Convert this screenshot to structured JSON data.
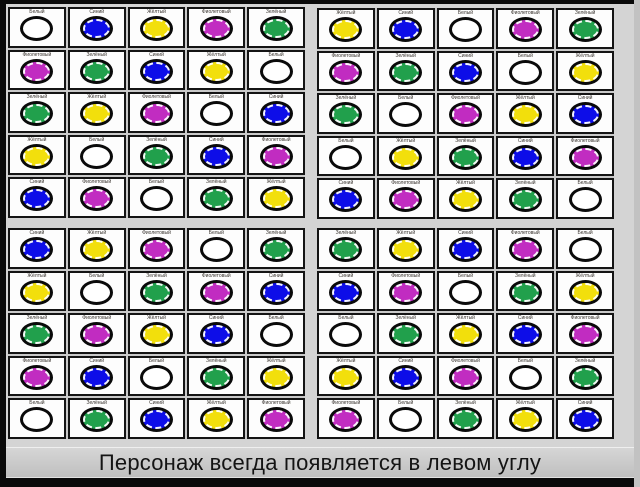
{
  "caption": "Персонаж всегда появляется в левом углу",
  "colors": {
    "white": {
      "label": "Белый",
      "hex": "#ffffff"
    },
    "blue": {
      "label": "Синий",
      "hex": "#0d0de8"
    },
    "yellow": {
      "label": "Жёлтый",
      "hex": "#f2df0c"
    },
    "violet": {
      "label": "Фиолетовый",
      "hex": "#c12cc1"
    },
    "green": {
      "label": "Зелёный",
      "hex": "#21a04c"
    }
  },
  "grids": [
    {
      "name": "top-left",
      "rows": [
        [
          "white",
          "blue",
          "yellow",
          "violet",
          "green"
        ],
        [
          "violet",
          "green",
          "blue",
          "yellow",
          "white"
        ],
        [
          "green",
          "yellow",
          "violet",
          "white",
          "blue"
        ],
        [
          "yellow",
          "white",
          "green",
          "blue",
          "violet"
        ],
        [
          "blue",
          "violet",
          "white",
          "green",
          "yellow"
        ]
      ]
    },
    {
      "name": "top-right",
      "rows": [
        [
          "yellow",
          "blue",
          "white",
          "violet",
          "green"
        ],
        [
          "violet",
          "green",
          "blue",
          "white",
          "yellow"
        ],
        [
          "green",
          "white",
          "violet",
          "yellow",
          "blue"
        ],
        [
          "white",
          "yellow",
          "green",
          "blue",
          "violet"
        ],
        [
          "blue",
          "violet",
          "yellow",
          "green",
          "white"
        ]
      ]
    },
    {
      "name": "bottom-left",
      "rows": [
        [
          "blue",
          "yellow",
          "violet",
          "white",
          "green"
        ],
        [
          "yellow",
          "white",
          "green",
          "violet",
          "blue"
        ],
        [
          "green",
          "violet",
          "yellow",
          "blue",
          "white"
        ],
        [
          "violet",
          "blue",
          "white",
          "green",
          "yellow"
        ],
        [
          "white",
          "green",
          "blue",
          "yellow",
          "violet"
        ]
      ]
    },
    {
      "name": "bottom-right",
      "rows": [
        [
          "green",
          "yellow",
          "blue",
          "violet",
          "white"
        ],
        [
          "blue",
          "violet",
          "white",
          "green",
          "yellow"
        ],
        [
          "white",
          "green",
          "yellow",
          "blue",
          "violet"
        ],
        [
          "yellow",
          "blue",
          "violet",
          "white",
          "green"
        ],
        [
          "violet",
          "white",
          "green",
          "yellow",
          "blue"
        ]
      ]
    }
  ]
}
